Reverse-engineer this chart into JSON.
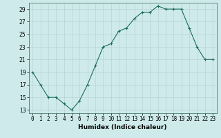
{
  "x": [
    0,
    1,
    2,
    3,
    4,
    5,
    6,
    7,
    8,
    9,
    10,
    11,
    12,
    13,
    14,
    15,
    16,
    17,
    18,
    19,
    20,
    21,
    22,
    23
  ],
  "y": [
    19,
    17,
    15,
    15,
    14,
    13,
    14.5,
    17,
    20,
    23,
    23.5,
    25.5,
    26,
    27.5,
    28.5,
    28.5,
    29.5,
    29,
    29,
    29,
    26,
    23,
    21,
    21
  ],
  "xlabel": "Humidex (Indice chaleur)",
  "xlim": [
    -0.5,
    23.5
  ],
  "ylim": [
    12.5,
    30.0
  ],
  "yticks": [
    13,
    15,
    17,
    19,
    21,
    23,
    25,
    27,
    29
  ],
  "xticks": [
    0,
    1,
    2,
    3,
    4,
    5,
    6,
    7,
    8,
    9,
    10,
    11,
    12,
    13,
    14,
    15,
    16,
    17,
    18,
    19,
    20,
    21,
    22,
    23
  ],
  "line_color": "#1a6b5a",
  "marker": "+",
  "bg_color": "#ceeaea",
  "grid_color": "#b8d4d4",
  "xlabel_fontsize": 6.5,
  "tick_fontsize": 5.5,
  "linewidth": 0.8,
  "markersize": 3.5,
  "markeredgewidth": 0.8
}
